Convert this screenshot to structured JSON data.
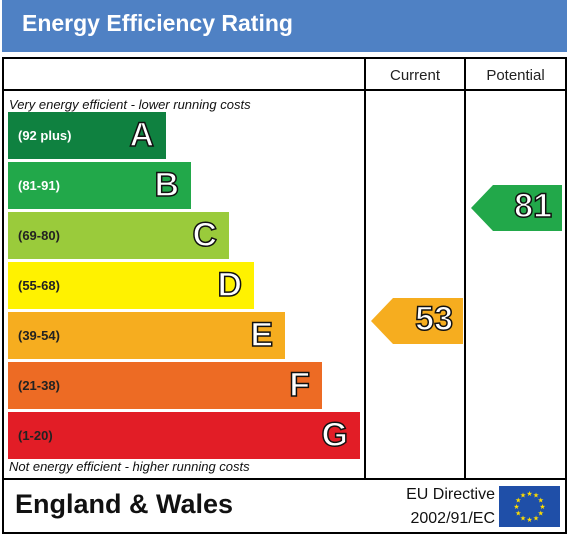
{
  "header": {
    "title": "Energy Efficiency Rating",
    "color": "#4f81c4"
  },
  "columns": {
    "current": "Current",
    "potential": "Potential"
  },
  "notes": {
    "top": "Very energy efficient - lower running costs",
    "bottom": "Not energy efficient - higher running costs"
  },
  "bands": [
    {
      "letter": "A",
      "range": "(92 plus)",
      "color": "#0f8140",
      "text_color": "#ffffff"
    },
    {
      "letter": "B",
      "range": "(81-91)",
      "color": "#22a84a",
      "text_color": "#ffffff"
    },
    {
      "letter": "C",
      "range": "(69-80)",
      "color": "#9acb3b",
      "text_color": "#222222"
    },
    {
      "letter": "D",
      "range": "(55-68)",
      "color": "#fff200",
      "text_color": "#222222"
    },
    {
      "letter": "E",
      "range": "(39-54)",
      "color": "#f6ad1f",
      "text_color": "#222222"
    },
    {
      "letter": "F",
      "range": "(21-38)",
      "color": "#ed6b24",
      "text_color": "#222222"
    },
    {
      "letter": "G",
      "range": "(1-20)",
      "color": "#e21d26",
      "text_color": "#222222"
    }
  ],
  "current": {
    "value": "53",
    "band": "E",
    "color": "#f6ad1f"
  },
  "potential": {
    "value": "81",
    "band": "B",
    "color": "#22a84a"
  },
  "footer": {
    "country": "England & Wales",
    "directive_line1": "EU Directive",
    "directive_line2": "2002/91/EC",
    "flag_icon": "eu-flag-icon"
  }
}
